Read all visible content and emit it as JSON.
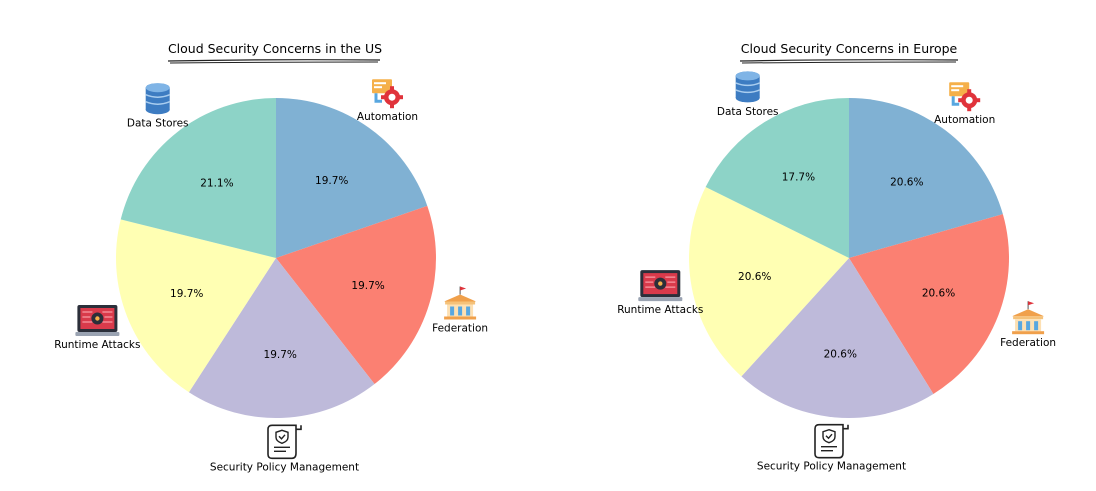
{
  "chart_data": [
    {
      "type": "pie",
      "title": "Cloud Security Concerns in the US",
      "categories": [
        "Automation",
        "Federation",
        "Security Policy Management",
        "Runtime Attacks",
        "Data Stores"
      ],
      "values": [
        19.7,
        19.7,
        19.7,
        19.7,
        21.1
      ],
      "value_labels": [
        "19.7%",
        "19.7%",
        "19.7%",
        "19.7%",
        "21.1%"
      ],
      "colors": [
        "#80b1d3",
        "#fb8072",
        "#bebada",
        "#ffffb3",
        "#8dd3c7"
      ],
      "icons": [
        "automation-gear-icon",
        "federation-building-icon",
        "security-policy-scroll-icon",
        "runtime-attack-laptop-icon",
        "data-store-database-icon"
      ]
    },
    {
      "type": "pie",
      "title": "Cloud Security Concerns in Europe",
      "categories": [
        "Automation",
        "Federation",
        "Security Policy Management",
        "Runtime Attacks",
        "Data Stores"
      ],
      "values": [
        20.6,
        20.6,
        20.6,
        20.6,
        17.7
      ],
      "value_labels": [
        "20.6%",
        "20.6%",
        "20.6%",
        "20.6%",
        "17.7%"
      ],
      "colors": [
        "#80b1d3",
        "#fb8072",
        "#bebada",
        "#ffffb3",
        "#8dd3c7"
      ],
      "icons": [
        "automation-gear-icon",
        "federation-building-icon",
        "security-policy-scroll-icon",
        "runtime-attack-laptop-icon",
        "data-store-database-icon"
      ]
    }
  ]
}
